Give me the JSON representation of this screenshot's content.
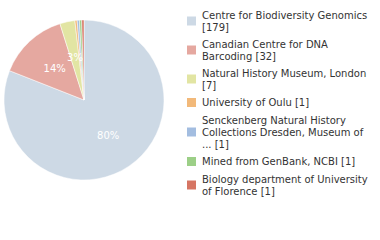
{
  "chart_data": {
    "type": "pie",
    "categories": [
      "Centre for Biodiversity Genomics [179]",
      "Canadian Centre for DNA Barcoding [32]",
      "Natural History Museum, London [7]",
      "University of Oulu [1]",
      "Senckenberg Natural History Collections Dresden, Museum of ... [1]",
      "Mined from GenBank, NCBI [1]",
      "Biology department of University of Florence [1]"
    ],
    "values": [
      80,
      14,
      3,
      0.45,
      0.45,
      0.45,
      0.45
    ],
    "value_labels": [
      "80%",
      "14%",
      "3%",
      null,
      null,
      null,
      null
    ],
    "colors": [
      "#cdd9e5",
      "#e5a8a0",
      "#e2e5a3",
      "#f2b97a",
      "#a3bde0",
      "#9ccf87",
      "#d67563"
    ],
    "data_labels": true,
    "legend": "right"
  }
}
